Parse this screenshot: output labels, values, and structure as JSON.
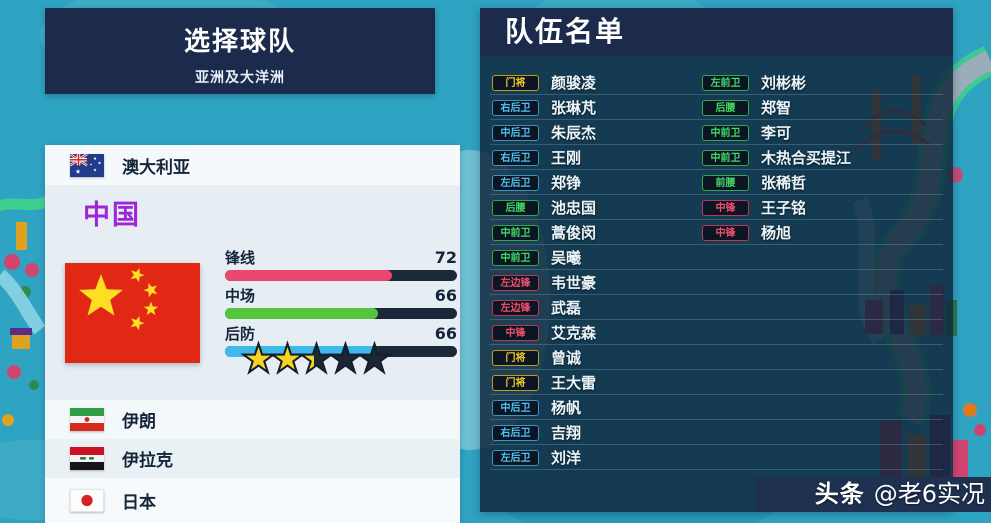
{
  "left_panel": {
    "title": "选择球队",
    "subtitle": "亚洲及大洋洲",
    "teams_before": [
      {
        "name": "澳大利亚",
        "flag_icon": "australia-flag"
      }
    ],
    "selected_team": {
      "name": "中国",
      "flag_icon": "china-flag",
      "name_color": "#9c27d8",
      "stats": [
        {
          "label": "锋线",
          "value": 72,
          "max": 100,
          "color": "#e8486e"
        },
        {
          "label": "中场",
          "value": 66,
          "max": 100,
          "color": "#55c63c"
        },
        {
          "label": "后防",
          "value": 66,
          "max": 100,
          "color": "#3fb9ea"
        }
      ],
      "stars": 2.5,
      "stars_total": 5,
      "star_color": "#f6d41f"
    },
    "teams_after": [
      {
        "name": "伊朗",
        "flag_icon": "iran-flag"
      },
      {
        "name": "伊拉克",
        "flag_icon": "iraq-flag"
      },
      {
        "name": "日本",
        "flag_icon": "japan-flag"
      }
    ]
  },
  "roster_panel": {
    "title": "队伍名单",
    "position_colors": {
      "gk": "#f3cb28",
      "df": "#4fc4f2",
      "mf": "#42dc66",
      "fw": "#f2506c"
    },
    "column1": [
      {
        "pos": "门将",
        "type": "gk",
        "name": "颜骏凌"
      },
      {
        "pos": "右后卫",
        "type": "df",
        "name": "张琳芃"
      },
      {
        "pos": "中后卫",
        "type": "df",
        "name": "朱辰杰"
      },
      {
        "pos": "右后卫",
        "type": "df",
        "name": "王刚"
      },
      {
        "pos": "左后卫",
        "type": "df",
        "name": "郑铮"
      },
      {
        "pos": "后腰",
        "type": "mf",
        "name": "池忠国"
      },
      {
        "pos": "中前卫",
        "type": "mf",
        "name": "蒿俊闵"
      },
      {
        "pos": "中前卫",
        "type": "mf",
        "name": "吴曦"
      },
      {
        "pos": "左边锋",
        "type": "fw",
        "name": "韦世豪"
      },
      {
        "pos": "左边锋",
        "type": "fw",
        "name": "武磊"
      },
      {
        "pos": "中锋",
        "type": "fw",
        "name": "艾克森"
      },
      {
        "pos": "门将",
        "type": "gk",
        "name": "曾诚"
      },
      {
        "pos": "门将",
        "type": "gk",
        "name": "王大雷"
      },
      {
        "pos": "中后卫",
        "type": "df",
        "name": "杨帆"
      },
      {
        "pos": "右后卫",
        "type": "df",
        "name": "吉翔"
      },
      {
        "pos": "左后卫",
        "type": "df",
        "name": "刘洋"
      }
    ],
    "column2": [
      {
        "pos": "左前卫",
        "type": "mf",
        "name": "刘彬彬"
      },
      {
        "pos": "后腰",
        "type": "mf",
        "name": "郑智"
      },
      {
        "pos": "中前卫",
        "type": "mf",
        "name": "李可"
      },
      {
        "pos": "中前卫",
        "type": "mf",
        "name": "木热合买提江"
      },
      {
        "pos": "前腰",
        "type": "mf",
        "name": "张稀哲"
      },
      {
        "pos": "中锋",
        "type": "fw",
        "name": "王子铭"
      },
      {
        "pos": "中锋",
        "type": "fw",
        "name": "杨旭"
      }
    ]
  },
  "watermark": {
    "prefix": "头条",
    "handle": "@老6实况"
  },
  "theme": {
    "background": "#2fa3c2",
    "panel_header": "#1c2b4b",
    "roster_body": "rgba(15,39,60,0.84)",
    "list_bg": "#f6fafc",
    "selected_bg": "#e7eef3"
  }
}
